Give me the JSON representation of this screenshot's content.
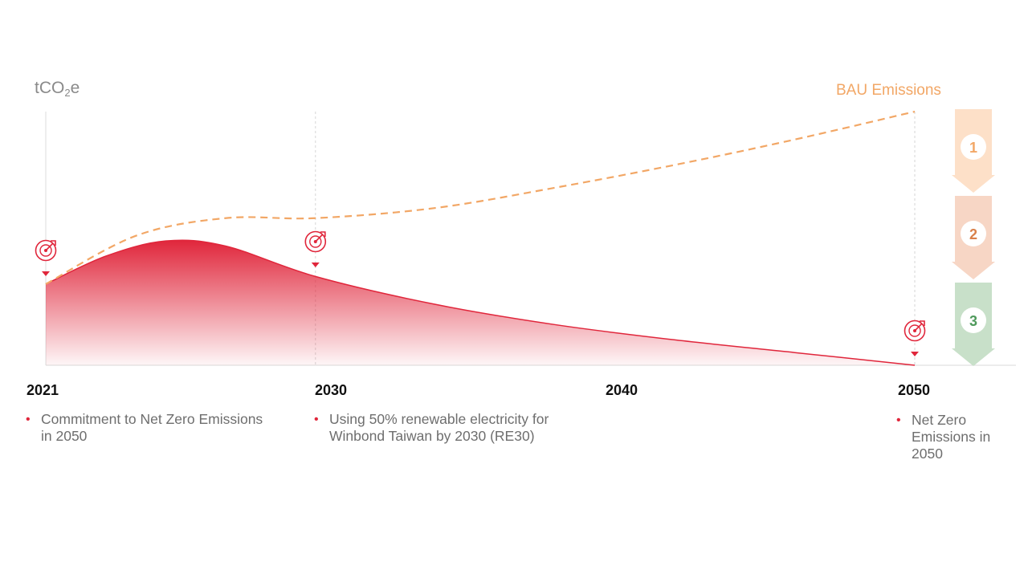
{
  "chart_data": {
    "type": "area",
    "ylabel": "tCO2e",
    "ylabel_main": "tCO",
    "ylabel_sub": "2",
    "ylabel_tail": "e",
    "x_ticks": [
      "2021",
      "2030",
      "2040",
      "2050"
    ],
    "xlim": [
      2021,
      2050
    ],
    "series": [
      {
        "name": "BAU Emissions",
        "style": "dashed-line",
        "color": "#f2a766",
        "x": [
          2021,
          2024,
          2027,
          2030,
          2034,
          2038,
          2042,
          2046,
          2050
        ],
        "values": [
          0.32,
          0.51,
          0.58,
          0.58,
          0.62,
          0.7,
          0.79,
          0.89,
          1.0
        ]
      },
      {
        "style": "filled-area",
        "color": "#e0263b",
        "x": [
          2021,
          2023,
          2025,
          2027,
          2030,
          2034,
          2038,
          2042,
          2046,
          2050
        ],
        "values": [
          0.32,
          0.43,
          0.49,
          0.47,
          0.35,
          0.24,
          0.16,
          0.1,
          0.05,
          0.0
        ]
      }
    ],
    "milestones": [
      {
        "year": "2021",
        "text_lines": [
          "Commitment to Net Zero Emissions",
          "in 2050"
        ]
      },
      {
        "year": "2030",
        "text_lines": [
          "Using 50% renewable electricity for",
          "Winbond Taiwan by 2030 (RE30)"
        ]
      },
      {
        "year": "2050",
        "text_lines": [
          "Net Zero",
          "Emissions in",
          "2050"
        ]
      }
    ],
    "steps": [
      {
        "label": "1",
        "color": "#fde0c8",
        "number_color": "#f2a766"
      },
      {
        "label": "2",
        "color": "#f7d6c5",
        "number_color": "#d9804a"
      },
      {
        "label": "3",
        "color": "#c8e0c9",
        "number_color": "#4f9a5c"
      }
    ],
    "target_color": "#e0263b",
    "grid": false,
    "legend": "none"
  }
}
